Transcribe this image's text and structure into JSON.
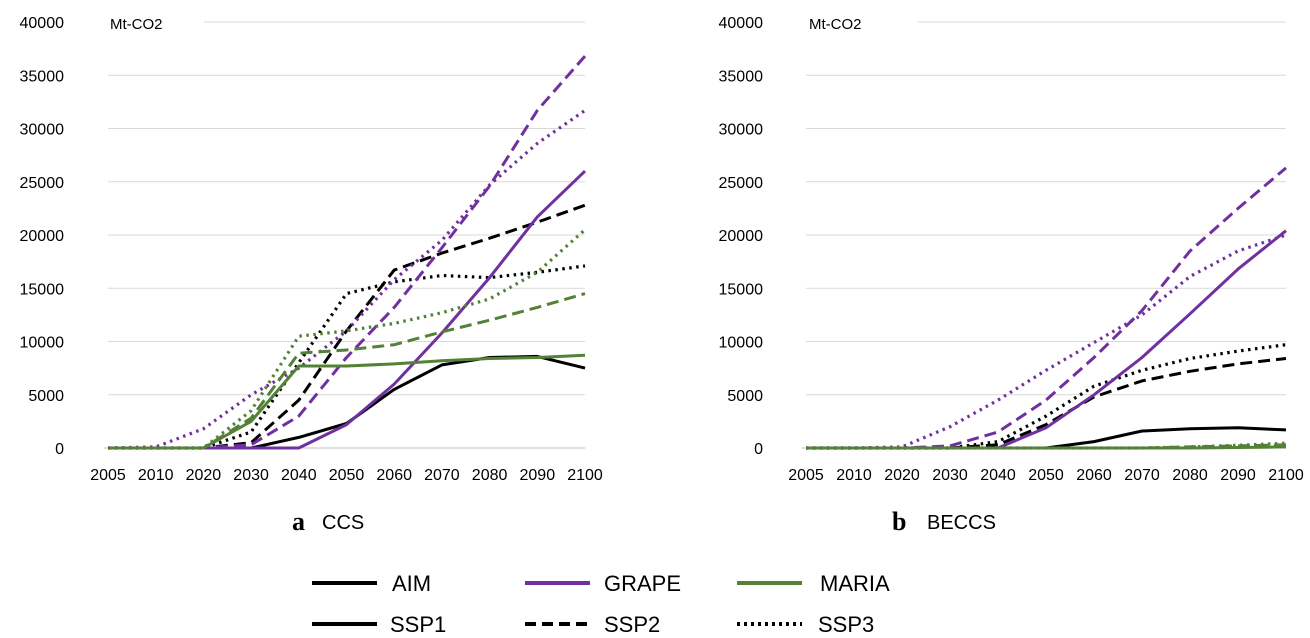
{
  "colors": {
    "AIM": "#000000",
    "GRAPE": "#7030a0",
    "MARIA": "#538135"
  },
  "legend": {
    "models": [
      {
        "name": "AIM",
        "color": "#000000"
      },
      {
        "name": "GRAPE",
        "color": "#7030a0"
      },
      {
        "name": "MARIA",
        "color": "#538135"
      }
    ],
    "scenarios": [
      {
        "name": "SSP1",
        "dash": "solid"
      },
      {
        "name": "SSP2",
        "dash": "dashed"
      },
      {
        "name": "SSP3",
        "dash": "dotted"
      }
    ]
  },
  "chart_data": [
    {
      "type": "line",
      "panel_letter": "a",
      "panel_name": "CCS",
      "ylabel": "Mt-CO2",
      "ylim": [
        0,
        40000
      ],
      "yticks": [
        0,
        5000,
        10000,
        15000,
        20000,
        25000,
        30000,
        35000,
        40000
      ],
      "x": [
        2005,
        2010,
        2020,
        2030,
        2040,
        2050,
        2060,
        2070,
        2080,
        2090,
        2100
      ],
      "grid": true,
      "series": [
        {
          "model": "AIM",
          "scenario": "SSP1",
          "values": [
            0,
            0,
            0,
            0,
            1000,
            2300,
            5500,
            7800,
            8500,
            8600,
            7500
          ]
        },
        {
          "model": "AIM",
          "scenario": "SSP2",
          "values": [
            0,
            0,
            0,
            500,
            4500,
            11000,
            16700,
            18300,
            19700,
            21200,
            22800
          ]
        },
        {
          "model": "AIM",
          "scenario": "SSP3",
          "values": [
            0,
            0,
            0,
            1500,
            8000,
            14500,
            15600,
            16200,
            16000,
            16500,
            17100
          ]
        },
        {
          "model": "GRAPE",
          "scenario": "SSP1",
          "values": [
            0,
            0,
            0,
            0,
            0,
            2200,
            6000,
            10800,
            16000,
            21700,
            26000
          ]
        },
        {
          "model": "GRAPE",
          "scenario": "SSP2",
          "values": [
            0,
            0,
            0,
            300,
            3000,
            8500,
            13200,
            18800,
            24600,
            31700,
            36800
          ]
        },
        {
          "model": "GRAPE",
          "scenario": "SSP3",
          "values": [
            0,
            100,
            1800,
            5000,
            7500,
            11000,
            15800,
            19500,
            24700,
            28600,
            31700
          ]
        },
        {
          "model": "MARIA",
          "scenario": "SSP1",
          "values": [
            0,
            0,
            0,
            2500,
            7700,
            7700,
            7900,
            8200,
            8400,
            8500,
            8700
          ]
        },
        {
          "model": "MARIA",
          "scenario": "SSP2",
          "values": [
            0,
            0,
            0,
            2800,
            8900,
            9200,
            9700,
            10900,
            12000,
            13200,
            14500
          ]
        },
        {
          "model": "MARIA",
          "scenario": "SSP3",
          "values": [
            0,
            0,
            0,
            3500,
            10500,
            11000,
            11700,
            12700,
            14000,
            16500,
            20500
          ]
        }
      ]
    },
    {
      "type": "line",
      "panel_letter": "b",
      "panel_name": "BECCS",
      "ylabel": "Mt-CO2",
      "ylim": [
        0,
        40000
      ],
      "yticks": [
        0,
        5000,
        10000,
        15000,
        20000,
        25000,
        30000,
        35000,
        40000
      ],
      "x": [
        2005,
        2010,
        2020,
        2030,
        2040,
        2050,
        2060,
        2070,
        2080,
        2090,
        2100
      ],
      "grid": true,
      "series": [
        {
          "model": "AIM",
          "scenario": "SSP1",
          "values": [
            0,
            0,
            0,
            0,
            0,
            0,
            600,
            1600,
            1800,
            1900,
            1700
          ]
        },
        {
          "model": "AIM",
          "scenario": "SSP2",
          "values": [
            0,
            0,
            0,
            0,
            300,
            2200,
            4800,
            6300,
            7200,
            7900,
            8400
          ]
        },
        {
          "model": "AIM",
          "scenario": "SSP3",
          "values": [
            0,
            0,
            0,
            0,
            600,
            3000,
            5800,
            7300,
            8400,
            9100,
            9700
          ]
        },
        {
          "model": "GRAPE",
          "scenario": "SSP1",
          "values": [
            0,
            0,
            0,
            0,
            0,
            1900,
            5000,
            8500,
            12600,
            16800,
            20400
          ]
        },
        {
          "model": "GRAPE",
          "scenario": "SSP2",
          "values": [
            0,
            0,
            0,
            200,
            1500,
            4500,
            8500,
            12900,
            18500,
            22500,
            26300
          ]
        },
        {
          "model": "GRAPE",
          "scenario": "SSP3",
          "values": [
            0,
            0,
            100,
            2000,
            4500,
            7300,
            9900,
            12500,
            16100,
            18500,
            20000
          ]
        },
        {
          "model": "MARIA",
          "scenario": "SSP1",
          "values": [
            0,
            0,
            0,
            0,
            0,
            0,
            0,
            0,
            0,
            50,
            100
          ]
        },
        {
          "model": "MARIA",
          "scenario": "SSP2",
          "values": [
            0,
            0,
            0,
            0,
            0,
            0,
            0,
            0,
            100,
            200,
            300
          ]
        },
        {
          "model": "MARIA",
          "scenario": "SSP3",
          "values": [
            0,
            0,
            0,
            0,
            0,
            0,
            0,
            0,
            100,
            250,
            450
          ]
        }
      ]
    }
  ]
}
